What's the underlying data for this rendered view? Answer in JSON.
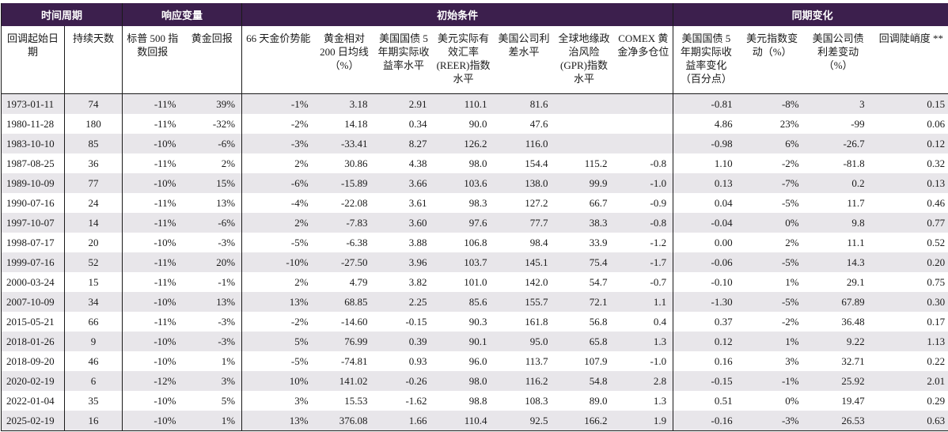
{
  "groups": {
    "period": "时间周期",
    "response": "响应变量",
    "initial": "初始条件",
    "concurrent": "同期变化"
  },
  "columns": [
    "回调起始日期",
    "持续天数",
    "标普 500 指数回报",
    "黄金回报",
    "66 天金价势能",
    "黄金相对 200 日均线（%）",
    "美国国债 5 年期实际收益率水平",
    "美元实际有效汇率 (REER)指数水平",
    "美国公司利差水平",
    "全球地缘政治风险 (GPR)指数水平",
    "COMEX 黄金净多仓位",
    "美国国债 5 年期实际收益率变化（百分点）",
    "美元指数变动（%）",
    "美国公司债利差变动（%）",
    "回调陡峭度 **"
  ],
  "rows": [
    [
      "1973-01-11",
      "74",
      "-11%",
      "39%",
      "-1%",
      "3.18",
      "2.91",
      "110.1",
      "81.6",
      "",
      "",
      "-0.81",
      "-8%",
      "3",
      "0.15"
    ],
    [
      "1980-11-28",
      "180",
      "-11%",
      "-32%",
      "-2%",
      "14.18",
      "0.34",
      "90.0",
      "47.6",
      "",
      "",
      "4.86",
      "23%",
      "-99",
      "0.06"
    ],
    [
      "1983-10-10",
      "85",
      "-10%",
      "-6%",
      "-3%",
      "-33.41",
      "8.27",
      "126.2",
      "116.0",
      "",
      "",
      "-0.98",
      "6%",
      "-26.7",
      "0.12"
    ],
    [
      "1987-08-25",
      "36",
      "-11%",
      "2%",
      "2%",
      "30.86",
      "4.38",
      "98.0",
      "154.4",
      "115.2",
      "-0.8",
      "1.10",
      "-2%",
      "-81.8",
      "0.32"
    ],
    [
      "1989-10-09",
      "77",
      "-10%",
      "15%",
      "-6%",
      "-15.89",
      "3.66",
      "103.6",
      "138.0",
      "99.9",
      "-1.0",
      "0.13",
      "-7%",
      "0.2",
      "0.13"
    ],
    [
      "1990-07-16",
      "24",
      "-11%",
      "13%",
      "-4%",
      "-22.08",
      "3.61",
      "98.3",
      "127.2",
      "66.7",
      "-0.9",
      "0.04",
      "-5%",
      "11.7",
      "0.46"
    ],
    [
      "1997-10-07",
      "14",
      "-11%",
      "-6%",
      "2%",
      "-7.83",
      "3.60",
      "97.6",
      "77.7",
      "38.3",
      "-0.8",
      "-0.04",
      "0%",
      "9.8",
      "0.77"
    ],
    [
      "1998-07-17",
      "20",
      "-10%",
      "-3%",
      "-5%",
      "-6.38",
      "3.88",
      "106.8",
      "98.4",
      "33.9",
      "-1.2",
      "0.00",
      "2%",
      "11.1",
      "0.52"
    ],
    [
      "1999-07-16",
      "52",
      "-11%",
      "20%",
      "-10%",
      "-27.50",
      "3.96",
      "103.7",
      "145.1",
      "75.4",
      "-1.7",
      "-0.06",
      "-5%",
      "14.3",
      "0.20"
    ],
    [
      "2000-03-24",
      "15",
      "-11%",
      "-1%",
      "2%",
      "4.79",
      "3.82",
      "101.0",
      "142.0",
      "54.7",
      "-0.7",
      "-0.10",
      "1%",
      "29.1",
      "0.75"
    ],
    [
      "2007-10-09",
      "34",
      "-10%",
      "13%",
      "13%",
      "68.85",
      "2.25",
      "85.6",
      "155.7",
      "72.1",
      "1.1",
      "-1.30",
      "-5%",
      "67.89",
      "0.30"
    ],
    [
      "2015-05-21",
      "66",
      "-11%",
      "-3%",
      "-2%",
      "-14.60",
      "-0.15",
      "90.3",
      "161.8",
      "56.8",
      "0.4",
      "0.37",
      "-2%",
      "36.48",
      "0.17"
    ],
    [
      "2018-01-26",
      "9",
      "-10%",
      "-3%",
      "5%",
      "76.99",
      "0.39",
      "90.1",
      "95.0",
      "65.8",
      "1.3",
      "0.12",
      "1%",
      "9.22",
      "1.13"
    ],
    [
      "2018-09-20",
      "46",
      "-10%",
      "1%",
      "-5%",
      "-74.81",
      "0.93",
      "96.0",
      "113.7",
      "107.9",
      "-1.0",
      "0.16",
      "3%",
      "32.71",
      "0.22"
    ],
    [
      "2020-02-19",
      "6",
      "-12%",
      "3%",
      "10%",
      "141.02",
      "-0.26",
      "98.0",
      "116.2",
      "54.8",
      "2.8",
      "-0.15",
      "-1%",
      "25.92",
      "2.01"
    ],
    [
      "2022-01-04",
      "35",
      "-10%",
      "5%",
      "3%",
      "15.53",
      "-1.62",
      "98.8",
      "108.3",
      "89.0",
      "1.3",
      "0.51",
      "0%",
      "19.47",
      "0.29"
    ],
    [
      "2025-02-19",
      "16",
      "-10%",
      "1%",
      "13%",
      "376.08",
      "1.66",
      "110.4",
      "92.5",
      "166.2",
      "1.9",
      "-0.16",
      "-3%",
      "26.53",
      "0.63"
    ]
  ],
  "colors": {
    "header_bg": "#3c1f4d",
    "header_text": "#ffffff",
    "stripe": "#e8e6ea"
  }
}
